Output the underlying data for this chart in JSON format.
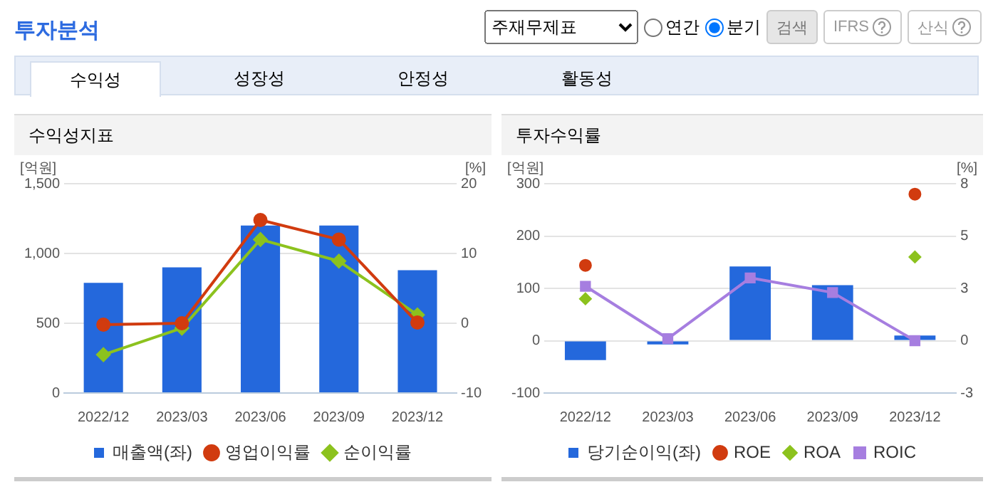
{
  "chart_data": [
    {
      "type": "other",
      "title": "투자분석",
      "annotations": [
        "주재무제표",
        "연간",
        "분기",
        "검색",
        "IFRS",
        "산식",
        "수익성",
        "성장성",
        "안정성",
        "활동성"
      ]
    },
    {
      "type": "bar",
      "title": "수익성지표",
      "ylabel": "[억원]",
      "y2label": "[%]",
      "categories": [
        "2022/12",
        "2023/03",
        "2023/06",
        "2023/09",
        "2023/12"
      ],
      "series": [
        {
          "name": "매출액(좌)",
          "type": "bar",
          "color": "#2468dc",
          "values": [
            790,
            900,
            1200,
            1200,
            880
          ]
        },
        {
          "name": "영업이익률",
          "type": "line",
          "axis": "y2",
          "marker": "circle",
          "color": "#d13b0f",
          "values": [
            -0.2,
            0,
            14.8,
            12,
            0.1
          ]
        },
        {
          "name": "순이익률",
          "type": "line",
          "axis": "y2",
          "marker": "diamond",
          "color": "#8cc21e",
          "values": [
            -4.5,
            -0.7,
            12,
            8.9,
            1.2
          ]
        }
      ],
      "ylim": [
        0,
        1500
      ],
      "yticks": [
        0,
        500,
        {
          "value": 1000,
          "label": "1,000"
        },
        {
          "value": 1500,
          "label": "1,500"
        }
      ],
      "y2lim": [
        -10,
        20
      ],
      "y2ticks": [
        -10,
        0,
        10,
        20
      ],
      "grid": "y",
      "legend": "bottom"
    },
    {
      "type": "bar",
      "title": "투자수익률",
      "ylabel": "[억원]",
      "y2label": "[%]",
      "categories": [
        "2022/12",
        "2023/03",
        "2023/06",
        "2023/09",
        "2023/12"
      ],
      "series": [
        {
          "name": "당기순이익(좌)",
          "type": "bar",
          "color": "#2468dc",
          "values": [
            -37,
            -7,
            142,
            106,
            10
          ]
        },
        {
          "name": "ROE",
          "type": "scatter",
          "axis": "y2",
          "marker": "circle",
          "color": "#d13b0f",
          "values": [
            3.6,
            null,
            null,
            null,
            7
          ]
        },
        {
          "name": "ROA",
          "type": "scatter",
          "axis": "y2",
          "marker": "diamond",
          "color": "#8cc21e",
          "values": [
            2,
            null,
            null,
            null,
            4
          ]
        },
        {
          "name": "ROIC",
          "type": "line",
          "axis": "y2",
          "marker": "square",
          "color": "#a67ee0",
          "values": [
            2.6,
            0.1,
            3,
            2.3,
            0
          ]
        }
      ],
      "ylim": [
        -100,
        300
      ],
      "yticks": [
        -100,
        0,
        100,
        200,
        300
      ],
      "y2lim": [
        -2.5,
        7.5
      ],
      "y2ticks": [
        {
          "value": -2.5,
          "label": "-3"
        },
        0,
        {
          "value": 2.5,
          "label": "3"
        },
        {
          "value": 5,
          "label": "5"
        },
        {
          "value": 7.5,
          "label": "8"
        }
      ],
      "grid": "y",
      "legend": "bottom"
    }
  ]
}
